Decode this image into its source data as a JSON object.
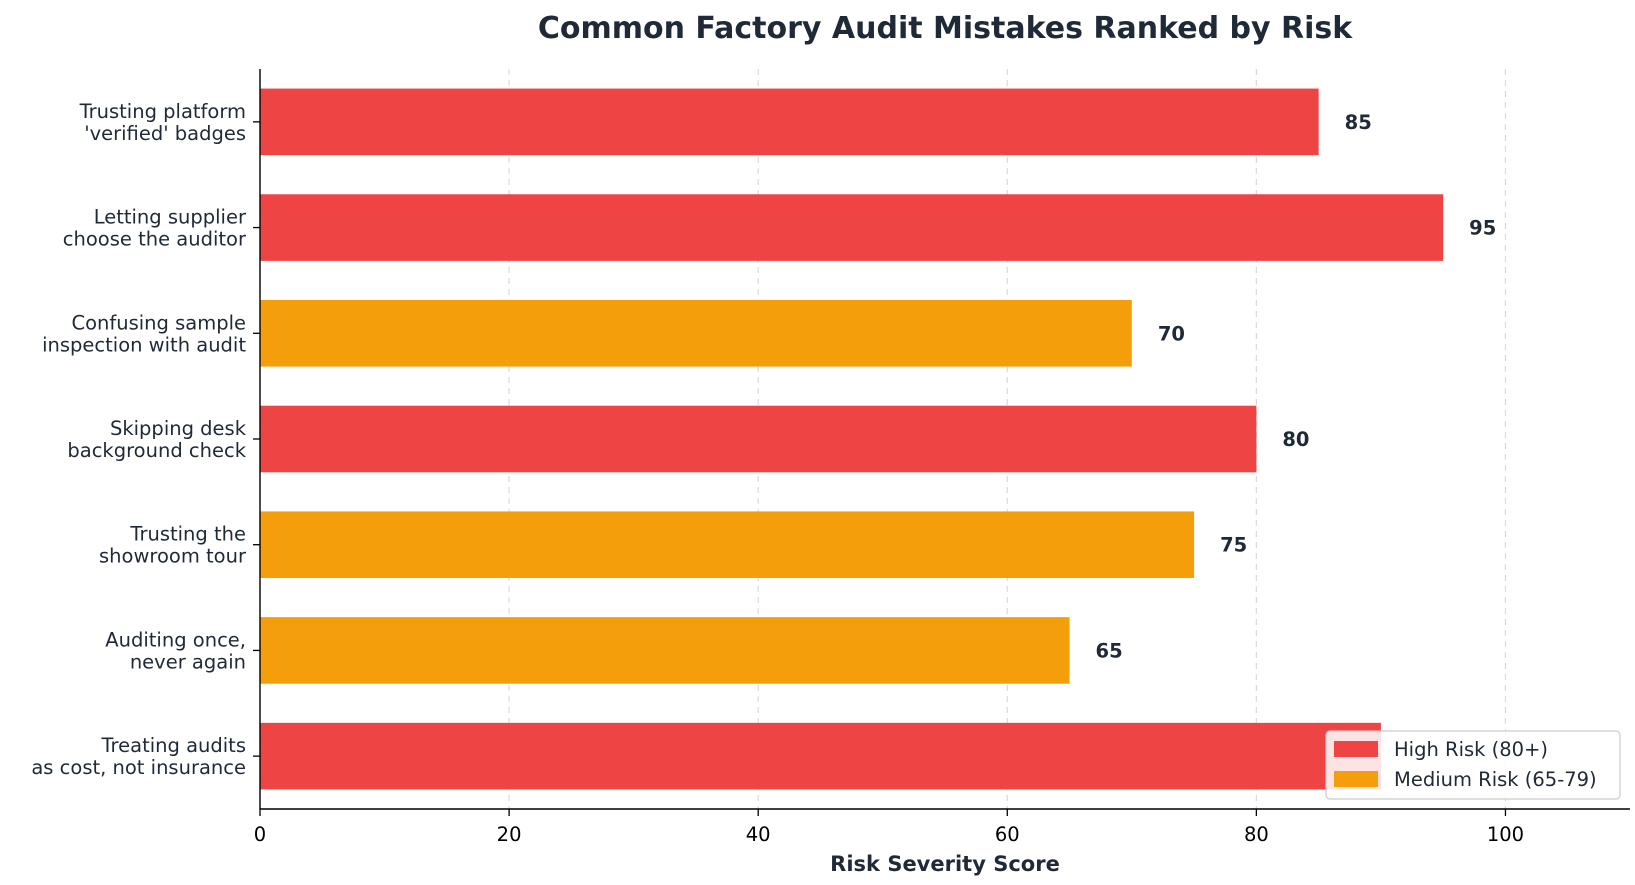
{
  "chart_data": {
    "type": "bar",
    "orientation": "horizontal",
    "title": "Common Factory Audit Mistakes Ranked by Risk",
    "xlabel": "Risk Severity Score",
    "ylabel": "",
    "xlim": [
      0,
      110
    ],
    "xticks": [
      0,
      20,
      40,
      60,
      80,
      100
    ],
    "grid": "vertical-dashed",
    "legend_position": "bottom-right",
    "categories": [
      [
        "Trusting platform",
        "'verified' badges"
      ],
      [
        "Letting supplier",
        "choose the auditor"
      ],
      [
        "Confusing sample",
        "inspection with audit"
      ],
      [
        "Skipping desk",
        "background check"
      ],
      [
        "Trusting the",
        "showroom tour"
      ],
      [
        "Auditing once,",
        "never again"
      ],
      [
        "Treating audits",
        "as cost, not insurance"
      ]
    ],
    "values": [
      85,
      95,
      70,
      80,
      75,
      65,
      90
    ],
    "risk_levels": [
      "high",
      "high",
      "medium",
      "high",
      "medium",
      "medium",
      "high"
    ],
    "show_value_labels": [
      true,
      true,
      true,
      true,
      true,
      true,
      false
    ],
    "colors": {
      "high": "#ef4444",
      "medium": "#f59e0b"
    },
    "legend": [
      {
        "key": "high",
        "label": "High Risk (80+)"
      },
      {
        "key": "medium",
        "label": "Medium Risk (65-79)"
      }
    ]
  }
}
